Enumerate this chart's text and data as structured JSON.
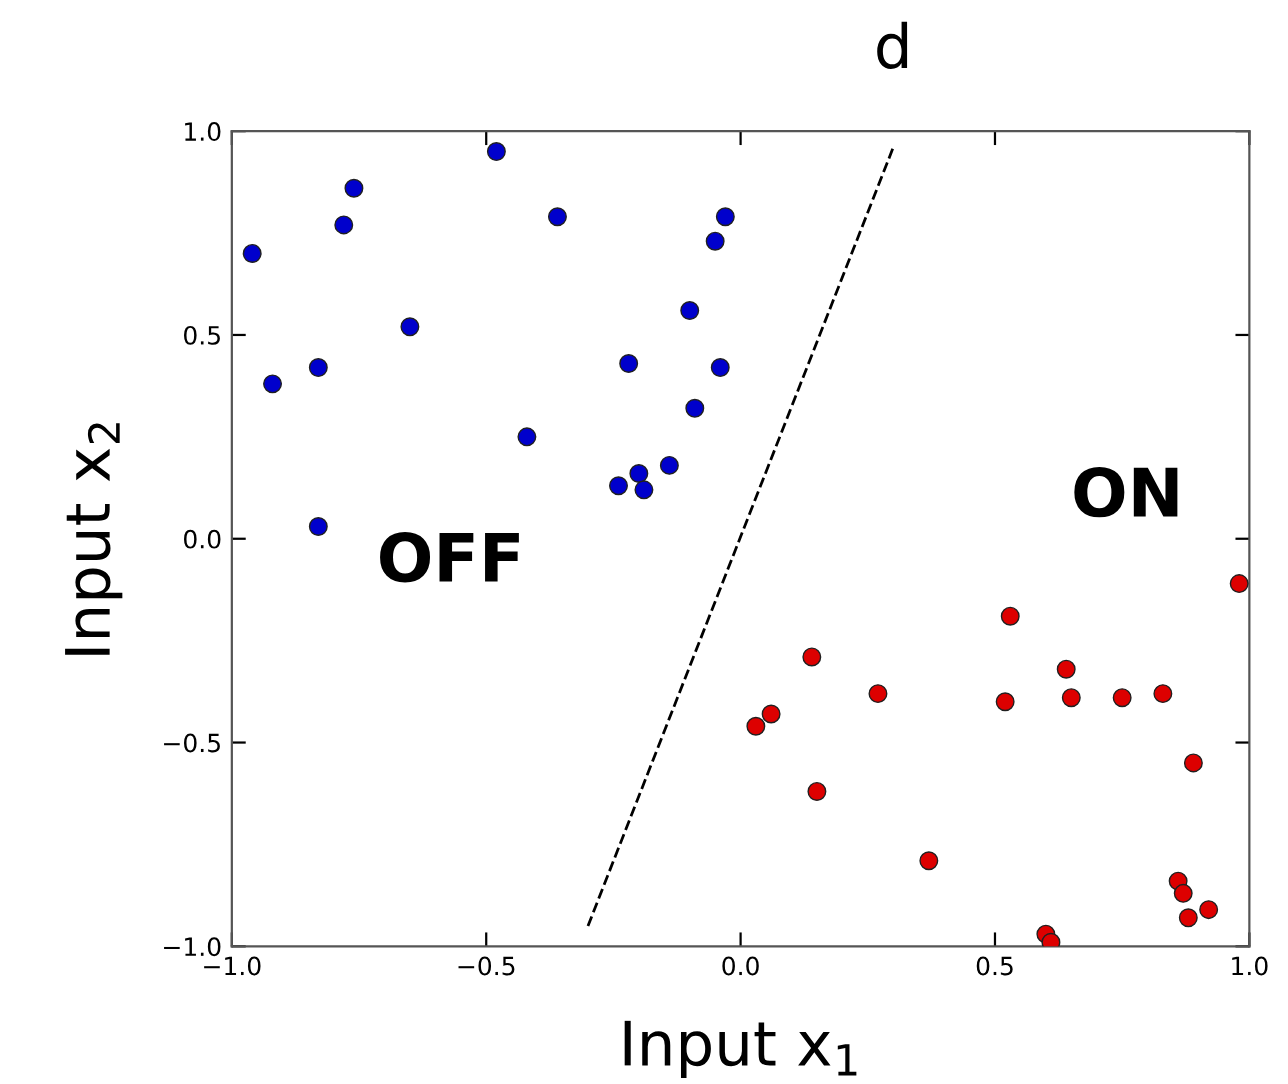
{
  "chart_data": {
    "type": "scatter",
    "xlabel": "Input x$_{1}$",
    "ylabel": "Input x$_{2}$",
    "xlim": [
      -1.0,
      1.0
    ],
    "ylim": [
      -1.0,
      1.0
    ],
    "xticks": [
      {
        "value": -1.0,
        "label": "−1.0"
      },
      {
        "value": -0.5,
        "label": "−0.5"
      },
      {
        "value": 0.0,
        "label": "0.0"
      },
      {
        "value": 0.5,
        "label": "0.5"
      },
      {
        "value": 1.0,
        "label": "1.0"
      }
    ],
    "yticks": [
      {
        "value": -1.0,
        "label": "−1.0"
      },
      {
        "value": -0.5,
        "label": "−0.5"
      },
      {
        "value": 0.0,
        "label": "0.0"
      },
      {
        "value": 0.5,
        "label": "0.5"
      },
      {
        "value": 1.0,
        "label": "1.0"
      }
    ],
    "grid": false,
    "marker": "circle",
    "series": [
      {
        "color": "#0000cc",
        "x": [
          -0.96,
          -0.92,
          -0.83,
          -0.83,
          -0.78,
          -0.76,
          -0.65,
          -0.48,
          -0.42,
          -0.36,
          -0.24,
          -0.22,
          -0.2,
          -0.19,
          -0.14,
          -0.1,
          -0.09,
          -0.05,
          -0.04,
          -0.03
        ],
        "values": [
          0.7,
          0.38,
          0.42,
          0.03,
          0.77,
          0.86,
          0.52,
          0.95,
          0.25,
          0.79,
          0.13,
          0.43,
          0.16,
          0.12,
          0.18,
          0.56,
          0.32,
          0.73,
          0.42,
          0.79
        ]
      },
      {
        "color": "#dd0000",
        "x": [
          0.03,
          0.06,
          0.14,
          0.15,
          0.27,
          0.37,
          0.52,
          0.53,
          0.6,
          0.61,
          0.64,
          0.65,
          0.75,
          0.83,
          0.86,
          0.87,
          0.88,
          0.89,
          0.92,
          0.98
        ],
        "values": [
          -0.46,
          -0.43,
          -0.29,
          -0.62,
          -0.38,
          -0.79,
          -0.4,
          -0.19,
          -0.97,
          -0.99,
          -0.32,
          -0.39,
          -0.39,
          -0.38,
          -0.84,
          -0.87,
          -0.93,
          -0.55,
          -0.91,
          -0.11
        ]
      },
      {
        "type": "line",
        "name": "d",
        "color": "#000000",
        "line_style": "dashed",
        "marker": "none",
        "x": [
          -0.3,
          0.3
        ],
        "values": [
          -0.95,
          0.96
        ]
      }
    ],
    "annotations": [
      "OFF",
      "ON"
    ]
  }
}
